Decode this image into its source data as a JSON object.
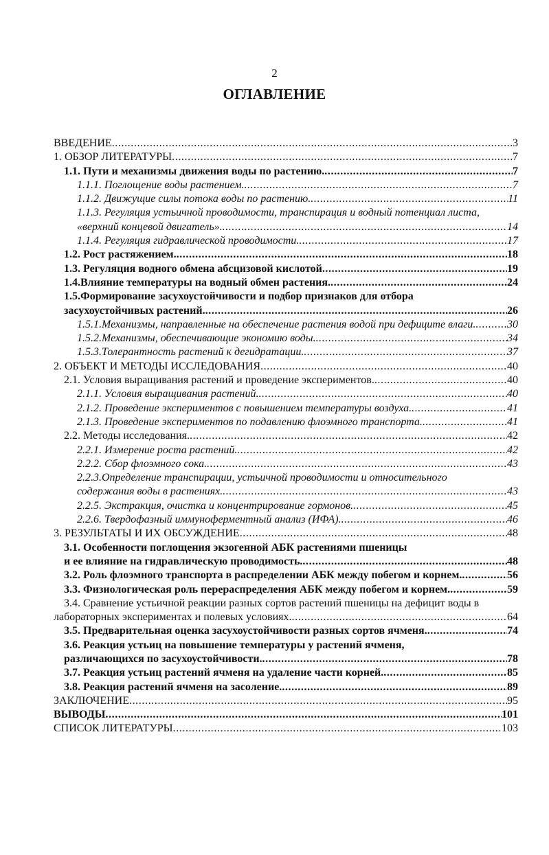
{
  "page_number": "2",
  "title": "ОГЛАВЛЕНИЕ",
  "entries": [
    {
      "lines": [
        "ВВЕДЕНИЕ"
      ],
      "page": "3",
      "style": "normal",
      "indent": [
        0
      ]
    },
    {
      "lines": [
        "1. ОБЗОР ЛИТЕРАТУРЫ"
      ],
      "page": "7",
      "style": "normal",
      "indent": [
        0
      ]
    },
    {
      "lines": [
        "1.1. Пути и механизмы движения воды по растению."
      ],
      "page": "7",
      "style": "bold",
      "indent": [
        1
      ]
    },
    {
      "lines": [
        "1.1.1. Поглощение воды растением."
      ],
      "page": "7",
      "style": "italic",
      "indent": [
        2
      ]
    },
    {
      "lines": [
        "1.1.2. Движущие силы потока воды по растению."
      ],
      "page": "11",
      "style": "italic",
      "indent": [
        2
      ]
    },
    {
      "lines": [
        "1.1.3. Регуляция устьичной проводимости, транспирация и водный потенциал листа,",
        "«верхний концевой двигатель»."
      ],
      "page": "14",
      "style": "italic",
      "indent": [
        2,
        2
      ]
    },
    {
      "lines": [
        "1.1.4. Регуляция гидравлической проводимости."
      ],
      "page": "17",
      "style": "italic",
      "indent": [
        2
      ]
    },
    {
      "lines": [
        "1.2. Рост растяжением."
      ],
      "page": "18",
      "style": "bold",
      "indent": [
        1
      ]
    },
    {
      "lines": [
        "1.3. Регуляция водного обмена абсцизовой кислотой"
      ],
      "page": "19",
      "style": "bold",
      "indent": [
        1
      ]
    },
    {
      "lines": [
        "1.4.Влияние температуры на водный обмен растения."
      ],
      "page": "24",
      "style": "bold",
      "indent": [
        1
      ]
    },
    {
      "lines": [
        "1.5.Формирование засухоустойчивости и подбор признаков для отбора",
        "засухоустойчивых растений."
      ],
      "page": "26",
      "style": "bold",
      "indent": [
        1,
        1
      ]
    },
    {
      "lines": [
        "1.5.1.Механизмы, направленные на обеспечение растения водой при дефиците влаги."
      ],
      "page": "30",
      "style": "italic",
      "indent": [
        2
      ]
    },
    {
      "lines": [
        "1.5.2.Механизмы, обеспечивающие экономию воды."
      ],
      "page": "34",
      "style": "italic",
      "indent": [
        2
      ]
    },
    {
      "lines": [
        "1.5.3.Толерантность растений к дегидратации."
      ],
      "page": "37",
      "style": "italic",
      "indent": [
        2
      ]
    },
    {
      "lines": [
        "2. ОБЪЕКТ И МЕТОДЫ ИССЛЕДОВАНИЯ"
      ],
      "page": "40",
      "style": "normal",
      "indent": [
        0
      ]
    },
    {
      "lines": [
        "2.1. Условия выращивания растений и проведение экспериментов."
      ],
      "page": "40",
      "style": "normal",
      "indent": [
        1
      ]
    },
    {
      "lines": [
        "2.1.1. Условия выращивания растений."
      ],
      "page": "40",
      "style": "italic",
      "indent": [
        2
      ]
    },
    {
      "lines": [
        "2.1.2. Проведение экспериментов с повышением температуры воздуха."
      ],
      "page": "41",
      "style": "italic",
      "indent": [
        2
      ]
    },
    {
      "lines": [
        "2.1.3. Проведение экспериментов по подавлению флоэмного транспорта."
      ],
      "page": "41",
      "style": "italic",
      "indent": [
        2
      ]
    },
    {
      "lines": [
        "2.2. Методы исследования."
      ],
      "page": "42",
      "style": "normal",
      "indent": [
        1
      ]
    },
    {
      "lines": [
        "2.2.1. Измерение роста растений."
      ],
      "page": "42",
      "style": "italic",
      "indent": [
        2
      ]
    },
    {
      "lines": [
        "2.2.2. Сбор флоэмного сока."
      ],
      "page": "43",
      "style": "italic",
      "indent": [
        2
      ]
    },
    {
      "lines": [
        "2.2.3.Определение транспирации, устьичной проводимости и относительного",
        "содержания воды в растениях."
      ],
      "page": "43",
      "style": "italic",
      "indent": [
        2,
        2
      ]
    },
    {
      "lines": [
        "2.2.5. Экстракция, очистка и концентрирование гормонов."
      ],
      "page": "45",
      "style": "italic",
      "indent": [
        2
      ]
    },
    {
      "lines": [
        "2.2.6. Твердофазный иммуноферментный анализ (ИФА)."
      ],
      "page": "46",
      "style": "italic",
      "indent": [
        2
      ]
    },
    {
      "lines": [
        "3. РЕЗУЛЬТАТЫ И ИХ ОБСУЖДЕНИЕ"
      ],
      "page": "48",
      "style": "normal",
      "indent": [
        0
      ]
    },
    {
      "lines": [
        "3.1. Особенности поглощения экзогенной АБК растениями пшеницы",
        "и ее влияние на гидравлическую проводимость."
      ],
      "page": "48",
      "style": "bold",
      "indent": [
        1,
        1
      ]
    },
    {
      "lines": [
        "3.2. Роль флоэмного транспорта в распределении АБК между побегом и корнем."
      ],
      "page": "56",
      "style": "bold",
      "indent": [
        1
      ]
    },
    {
      "lines": [
        "3.3. Физиологическая роль перераспределения АБК между побегом и корнем."
      ],
      "page": "59",
      "style": "bold",
      "indent": [
        1
      ]
    },
    {
      "lines": [
        "3.4. Сравнение устьичной реакции разных сортов растений пшеницы на дефицит воды в",
        "лабораторных экспериментах и полевых условиях."
      ],
      "page": "64",
      "style": "normal",
      "indent": [
        1,
        0
      ]
    },
    {
      "lines": [
        "3.5. Предварительная оценка засухоустойчивости разных сортов ячменя."
      ],
      "page": "74",
      "style": "bold",
      "indent": [
        1
      ]
    },
    {
      "lines": [
        "3.6. Реакция устьиц на повышение температуры у растений ячменя,",
        "различающихся по засухоустойчивости."
      ],
      "page": "78",
      "style": "bold",
      "indent": [
        1,
        1
      ]
    },
    {
      "lines": [
        "3.7. Реакция устьиц растений ячменя на удаление части корней."
      ],
      "page": "85",
      "style": "bold",
      "indent": [
        1
      ]
    },
    {
      "lines": [
        "3.8. Реакция растений ячменя на засоление."
      ],
      "page": "89",
      "style": "bold",
      "indent": [
        1
      ]
    },
    {
      "lines": [
        "ЗАКЛЮЧЕНИЕ"
      ],
      "page": "95",
      "style": "normal",
      "indent": [
        0
      ]
    },
    {
      "lines": [
        "ВЫВОДЫ"
      ],
      "page": "101",
      "style": "bold",
      "indent": [
        0
      ]
    },
    {
      "lines": [
        "СПИСОК ЛИТЕРАТУРЫ"
      ],
      "page": "103",
      "style": "normal",
      "indent": [
        0
      ]
    }
  ]
}
